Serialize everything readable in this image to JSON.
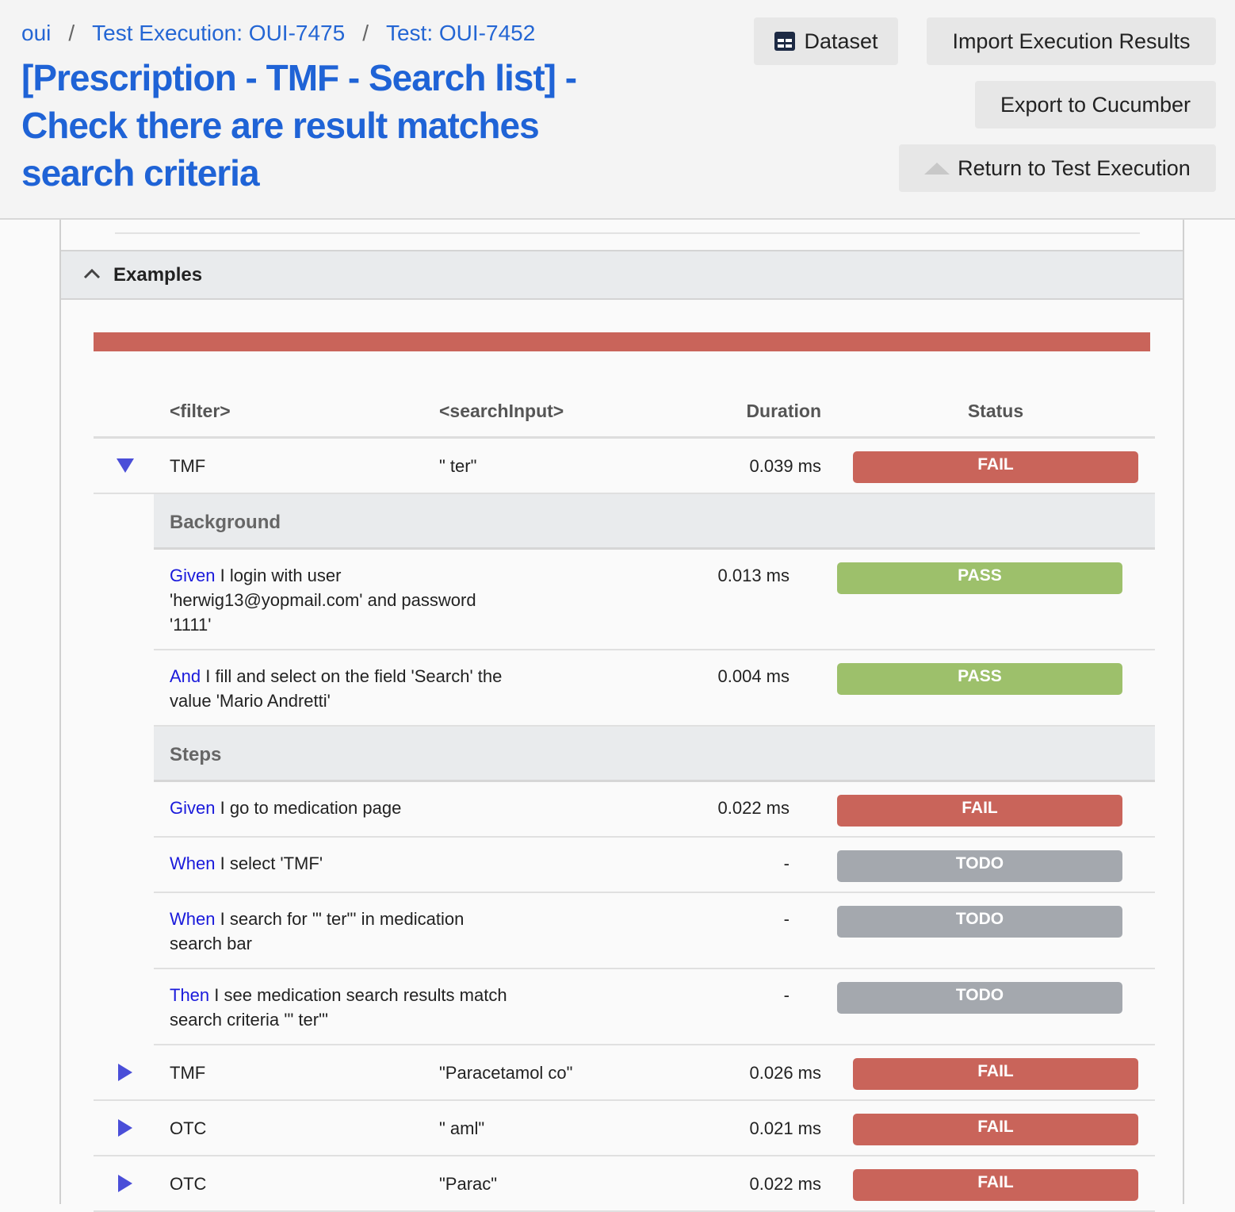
{
  "breadcrumb": {
    "items": [
      "oui",
      "Test Execution: OUI-7475",
      "Test: OUI-7452"
    ],
    "separator": "/"
  },
  "title": "[Prescription - TMF - Search list] - Check there are result matches search criteria",
  "buttons": {
    "dataset": "Dataset",
    "import": "Import Execution Results",
    "export": "Export to Cucumber",
    "return": "Return to Test Execution"
  },
  "examples": {
    "heading": "Examples",
    "columns": [
      "<filter>",
      "<searchInput>",
      "Duration",
      "Status"
    ],
    "rows": [
      {
        "filter": "TMF",
        "searchInput": "\" ter\"",
        "duration": "0.039 ms",
        "status": "FAIL",
        "expanded": true,
        "sections": [
          {
            "title": "Background",
            "steps": [
              {
                "keyword": "Given",
                "text": "I login with user 'herwig13@yopmail.com' and password '1111'",
                "duration": "0.013 ms",
                "status": "PASS"
              },
              {
                "keyword": "And",
                "text": "I fill and select on the field 'Search' the value 'Mario Andretti'",
                "duration": "0.004 ms",
                "status": "PASS"
              }
            ]
          },
          {
            "title": "Steps",
            "steps": [
              {
                "keyword": "Given",
                "text": "I go to medication page",
                "duration": "0.022 ms",
                "status": "FAIL"
              },
              {
                "keyword": "When",
                "text": "I select 'TMF'",
                "duration": "-",
                "status": "TODO"
              },
              {
                "keyword": "When",
                "text": "I search for '\" ter\"' in medication search bar",
                "duration": "-",
                "status": "TODO"
              },
              {
                "keyword": "Then",
                "text": "I see medication search results match search criteria '\" ter\"'",
                "duration": "-",
                "status": "TODO"
              }
            ]
          }
        ]
      },
      {
        "filter": "TMF",
        "searchInput": "\"Paracetamol co\"",
        "duration": "0.026 ms",
        "status": "FAIL",
        "expanded": false
      },
      {
        "filter": "OTC",
        "searchInput": "\" aml\"",
        "duration": "0.021 ms",
        "status": "FAIL",
        "expanded": false
      },
      {
        "filter": "OTC",
        "searchInput": "\"Parac\"",
        "duration": "0.022 ms",
        "status": "FAIL",
        "expanded": false
      }
    ]
  }
}
